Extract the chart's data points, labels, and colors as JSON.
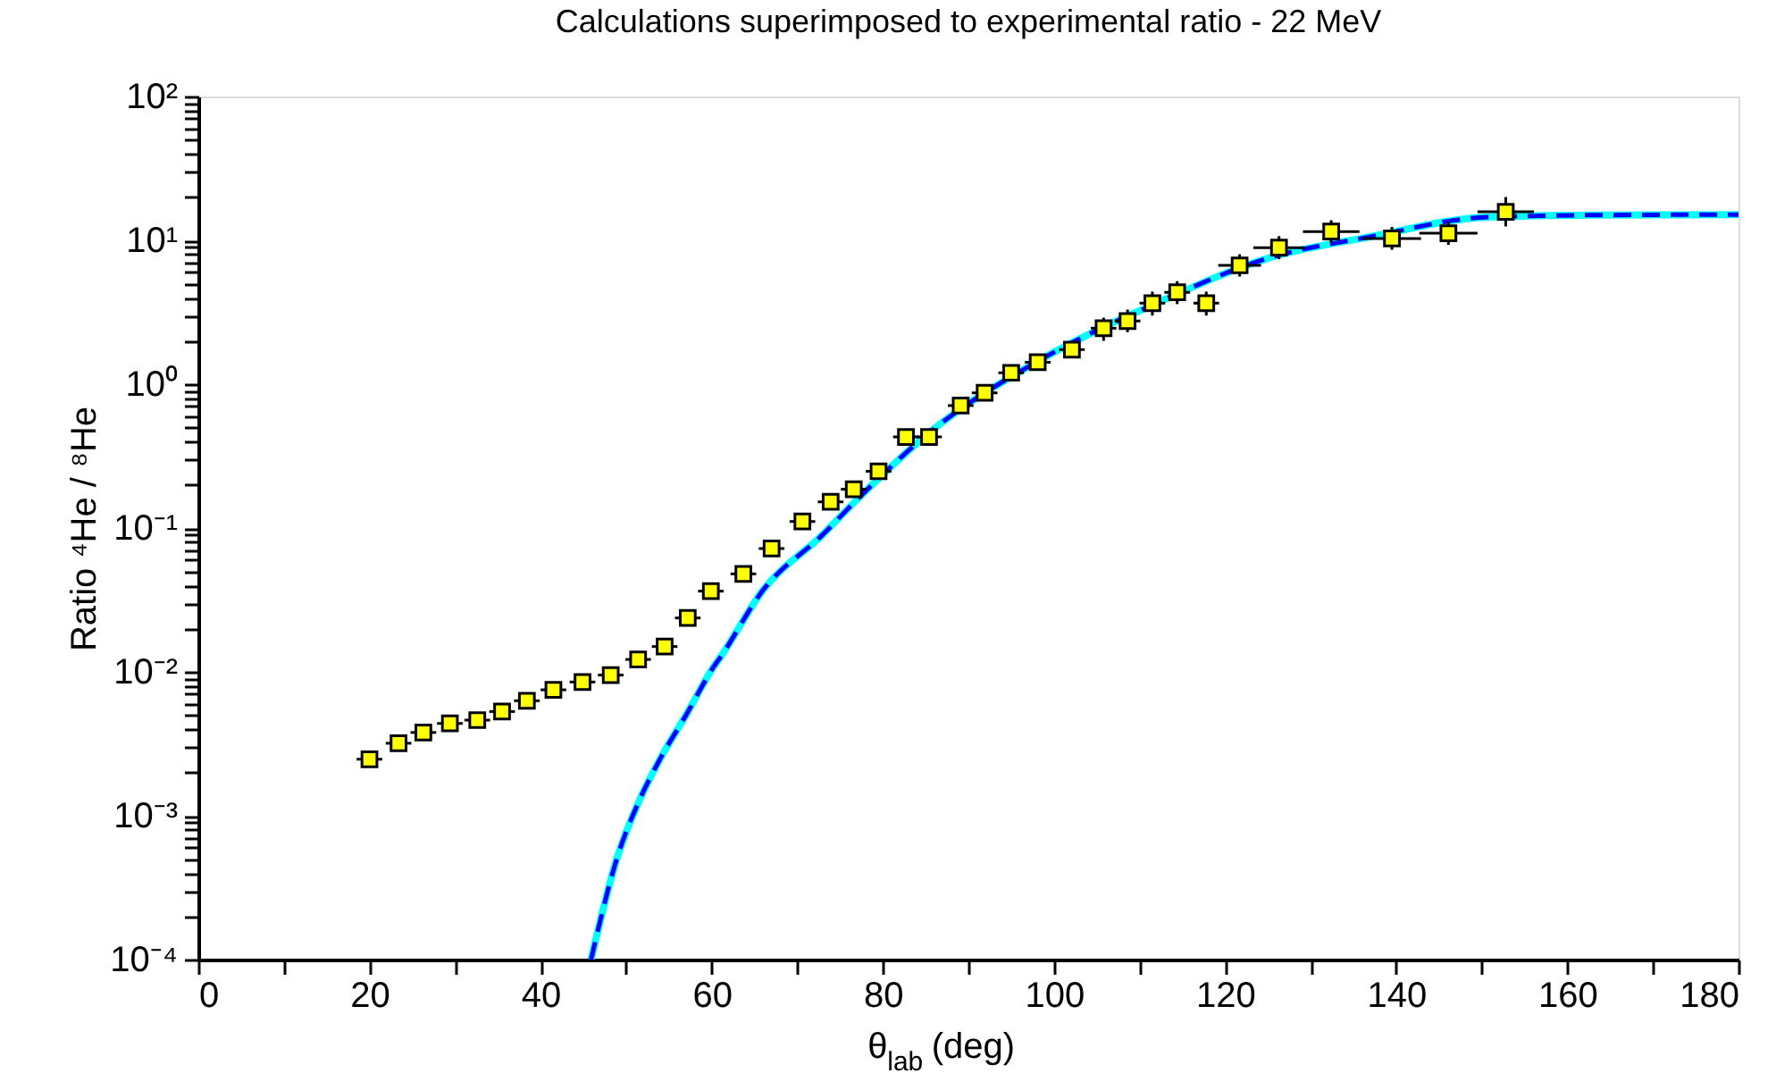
{
  "chart_data": {
    "type": "scatter",
    "title": "Calculations superimposed to experimental ratio - 22 MeV",
    "xlabel": "θ$_{lab}$  (deg)",
    "ylabel": "Ratio ⁴He / ⁸He",
    "log": "y",
    "grid": false,
    "marker": "square",
    "xlim": [
      0,
      180
    ],
    "ylim": [
      0.0001,
      100
    ],
    "xticks": [
      0,
      {
        "value": 10,
        "label": null
      },
      20,
      {
        "value": 30,
        "label": null
      },
      40,
      {
        "value": 50,
        "label": null
      },
      60,
      {
        "value": 70,
        "label": null
      },
      80,
      {
        "value": 90,
        "label": null
      },
      100,
      {
        "value": 110,
        "label": null
      },
      120,
      {
        "value": 130,
        "label": null
      },
      140,
      {
        "value": 150,
        "label": null
      },
      160,
      {
        "value": 170,
        "label": null
      },
      180
    ],
    "yticks": [
      {
        "value": 0.0001,
        "label": "10⁻⁴"
      },
      {
        "value": 0.0002,
        "label": null
      },
      {
        "value": 0.0003,
        "label": null
      },
      {
        "value": 0.0004,
        "label": null
      },
      {
        "value": 0.0005,
        "label": null
      },
      {
        "value": 0.0006,
        "label": null
      },
      {
        "value": 0.0007,
        "label": null
      },
      {
        "value": 0.0008,
        "label": null
      },
      {
        "value": 0.0009,
        "label": null
      },
      {
        "value": 0.001,
        "label": "10⁻³"
      },
      {
        "value": 0.002,
        "label": null
      },
      {
        "value": 0.003,
        "label": null
      },
      {
        "value": 0.004,
        "label": null
      },
      {
        "value": 0.005,
        "label": null
      },
      {
        "value": 0.006,
        "label": null
      },
      {
        "value": 0.007,
        "label": null
      },
      {
        "value": 0.008,
        "label": null
      },
      {
        "value": 0.009,
        "label": null
      },
      {
        "value": 0.01,
        "label": "10⁻²"
      },
      {
        "value": 0.02,
        "label": null
      },
      {
        "value": 0.03,
        "label": null
      },
      {
        "value": 0.04,
        "label": null
      },
      {
        "value": 0.05,
        "label": null
      },
      {
        "value": 0.06,
        "label": null
      },
      {
        "value": 0.07,
        "label": null
      },
      {
        "value": 0.08,
        "label": null
      },
      {
        "value": 0.09,
        "label": null
      },
      {
        "value": 0.1,
        "label": "10⁻¹"
      },
      {
        "value": 0.2,
        "label": null
      },
      {
        "value": 0.3,
        "label": null
      },
      {
        "value": 0.4,
        "label": null
      },
      {
        "value": 0.5,
        "label": null
      },
      {
        "value": 0.6,
        "label": null
      },
      {
        "value": 0.7,
        "label": null
      },
      {
        "value": 0.8,
        "label": null
      },
      {
        "value": 0.9,
        "label": null
      },
      {
        "value": 1,
        "label": "10⁰"
      },
      {
        "value": 2,
        "label": null
      },
      {
        "value": 3,
        "label": null
      },
      {
        "value": 4,
        "label": null
      },
      {
        "value": 5,
        "label": null
      },
      {
        "value": 6,
        "label": null
      },
      {
        "value": 7,
        "label": null
      },
      {
        "value": 8,
        "label": null
      },
      {
        "value": 9,
        "label": null
      },
      {
        "value": 10,
        "label": "10¹"
      },
      {
        "value": 20,
        "label": null
      },
      {
        "value": 30,
        "label": null
      },
      {
        "value": 40,
        "label": null
      },
      {
        "value": 50,
        "label": null
      },
      {
        "value": 60,
        "label": null
      },
      {
        "value": 70,
        "label": null
      },
      {
        "value": 80,
        "label": null
      },
      {
        "value": 90,
        "label": null
      },
      {
        "value": 100,
        "label": "10²"
      }
    ],
    "series": [
      {
        "type": "line",
        "color": "#00ffff",
        "line_style": "solid",
        "marker": "none",
        "x": [
          45.9,
          48.9,
          51.6,
          54,
          57,
          60.3,
          61,
          66,
          72.9,
          77,
          86,
          97.9,
          112,
          125,
          137,
          150.7,
          165,
          180
        ],
        "values": [
          0.0001,
          0.0005,
          0.0013,
          0.0025,
          0.005,
          0.011,
          0.0126,
          0.037,
          0.089,
          0.158,
          0.49,
          1.42,
          3.66,
          7.5,
          10.6,
          14.5,
          15.0,
          15.1
        ]
      },
      {
        "type": "line",
        "color": "#0000ff",
        "line_style": "dashed",
        "marker": "none",
        "x": [
          45.9,
          48.9,
          51.6,
          54,
          57,
          60.3,
          61,
          66,
          72.9,
          77,
          86,
          97.9,
          112,
          125,
          137,
          150.7,
          165,
          180
        ],
        "values": [
          0.0001,
          0.0005,
          0.0013,
          0.0025,
          0.005,
          0.011,
          0.0126,
          0.037,
          0.089,
          0.158,
          0.49,
          1.42,
          3.66,
          7.5,
          10.6,
          14.5,
          15.0,
          15.1
        ]
      },
      {
        "color": "#ffff00",
        "x": [
          20.0,
          23.4,
          26.3,
          29.4,
          32.6,
          35.5,
          38.4,
          41.5,
          44.9,
          48.2,
          51.4,
          54.5,
          57.2,
          59.9,
          63.7,
          67.0,
          70.6,
          73.9,
          76.6,
          79.5,
          82.7,
          85.4,
          89.1,
          91.9,
          95.0,
          98.1,
          102.1,
          105.8,
          108.6,
          111.5,
          114.4,
          117.8,
          121.7,
          126.3,
          132.4,
          139.5,
          146.1,
          152.8
        ],
        "values": [
          0.00247,
          0.00319,
          0.00379,
          0.00438,
          0.00462,
          0.0053,
          0.0063,
          0.0075,
          0.0085,
          0.0095,
          0.0122,
          0.015,
          0.0237,
          0.0364,
          0.048,
          0.072,
          0.111,
          0.152,
          0.186,
          0.248,
          0.43,
          0.43,
          0.71,
          0.87,
          1.2,
          1.42,
          1.74,
          2.45,
          2.75,
          3.66,
          4.35,
          3.66,
          6.7,
          8.9,
          11.5,
          10.3,
          11.2,
          15.8
        ],
        "xerrors": [
          1.5,
          1.5,
          1.5,
          1.5,
          1.5,
          1.5,
          1.5,
          1.5,
          1.5,
          1.5,
          1.5,
          1.5,
          1.5,
          1.5,
          1.5,
          1.5,
          1.5,
          1.5,
          1.5,
          1.5,
          1.5,
          1.5,
          1.5,
          1.5,
          1.5,
          1.5,
          1.5,
          1.5,
          1.5,
          1.5,
          1.5,
          1.5,
          2.5,
          3,
          3.3,
          3.4,
          3.4,
          3.3
        ],
        "errors": [
          null,
          null,
          null,
          null,
          null,
          null,
          null,
          null,
          null,
          null,
          null,
          null,
          null,
          null,
          null,
          null,
          null,
          null,
          null,
          null,
          null,
          null,
          null,
          null,
          null,
          null,
          null,
          [
            2.0,
            2.9
          ],
          [
            2.3,
            3.3
          ],
          [
            3.0,
            4.4
          ],
          [
            3.6,
            5.2
          ],
          [
            3.0,
            4.4
          ],
          [
            5.6,
            8.0
          ],
          [
            7.4,
            10.7
          ],
          [
            9.6,
            13.8
          ],
          [
            8.6,
            12.4
          ],
          [
            9.3,
            13.4
          ],
          [
            12.5,
            20
          ]
        ]
      }
    ]
  }
}
